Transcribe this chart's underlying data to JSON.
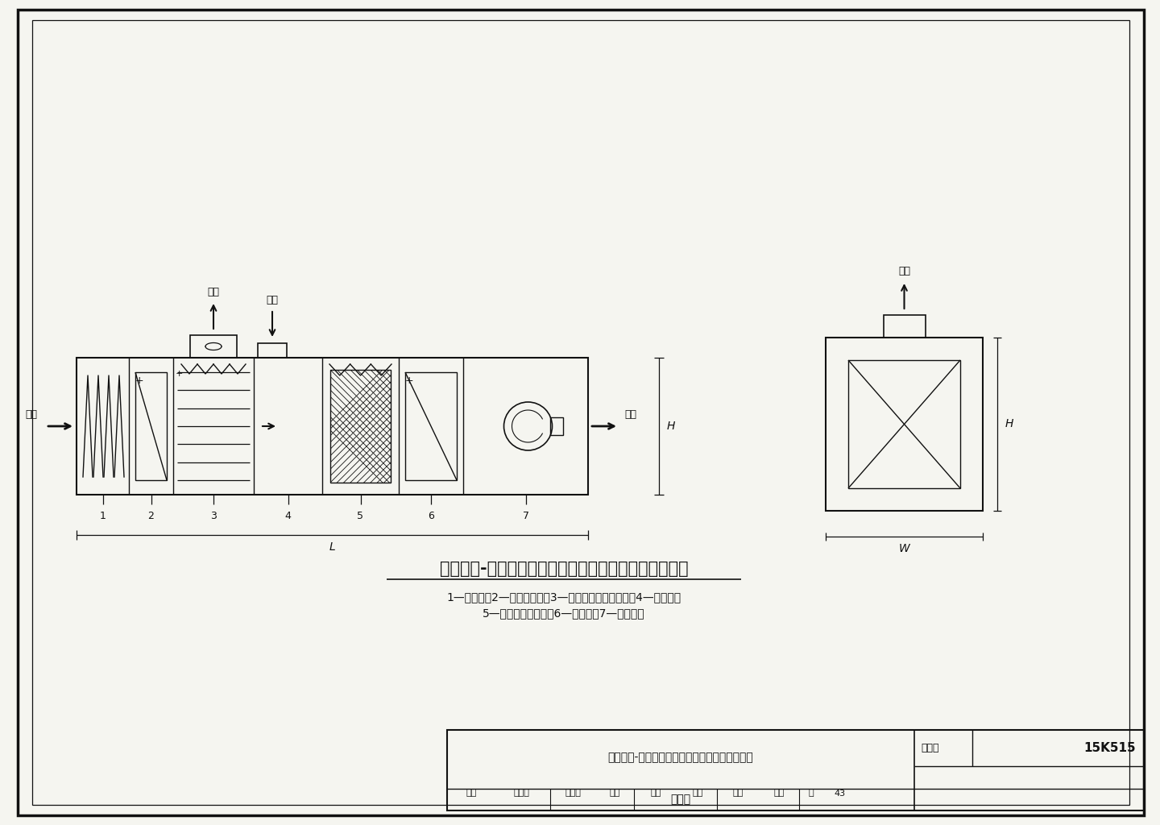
{
  "bg_color": "#f0f0eb",
  "line_color": "#111111",
  "paper_color": "#f5f5f0",
  "title": "管式间接-直接蒸发冷却通风空调机组功能及外形示意图",
  "subtitle_line1": "1—过滤段；2—新风预热段；3—管式间接蒸发冷却段；4—回风段；",
  "subtitle_line2": "5—直接蒸发冷却段；6—再热段；7—送风机段",
  "footer_title_line1": "管式间接-直接蒸发冷却通风空调机组功能及外形",
  "footer_title_line2": "示意图",
  "atlas_label": "图集号",
  "atlas_value": "15K515",
  "footer_row": [
    "审核",
    "强天伟",
    "核定体",
    "校对",
    "郎佳",
    "设计",
    "汪题",
    "汉超",
    "页",
    "43"
  ]
}
